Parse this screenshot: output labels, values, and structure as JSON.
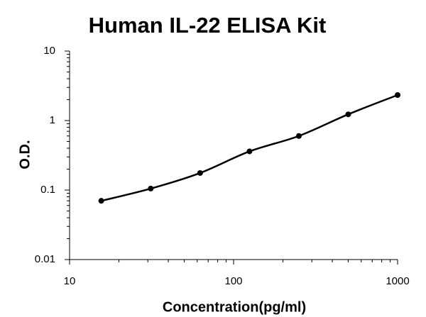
{
  "chart_data": {
    "type": "scatter",
    "title": "Human IL-22 ELISA Kit",
    "x_label": "Concentration(pg/ml)",
    "y_label": "O.D.",
    "x": [
      15.6,
      31.25,
      62.5,
      125,
      250,
      500,
      1000
    ],
    "values": [
      0.07,
      0.105,
      0.176,
      0.36,
      0.6,
      1.23,
      2.33
    ],
    "color": "#000000",
    "line": true,
    "x_scale": "log",
    "y_scale": "log",
    "xlim": [
      10,
      1000
    ],
    "xticks": [
      10,
      100,
      1000
    ],
    "ylim": [
      0.01,
      10
    ],
    "yticks": [
      0.01,
      0.1,
      1,
      10
    ],
    "grid": false
  }
}
